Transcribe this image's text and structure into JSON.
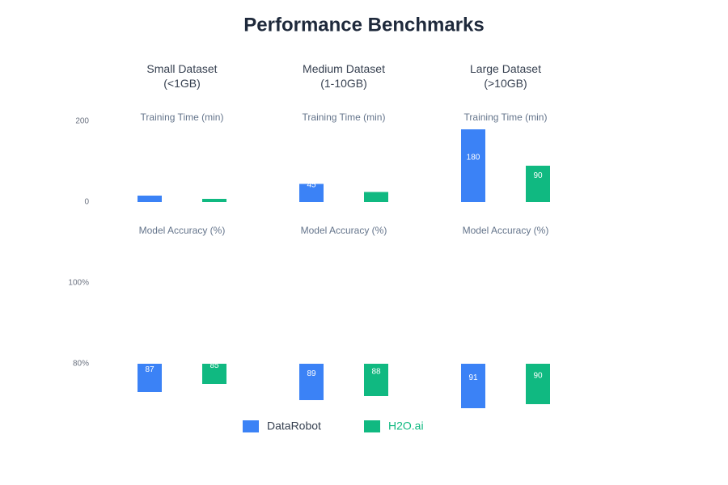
{
  "chart_data": {
    "type": "bar",
    "title": "Performance Benchmarks",
    "categories": [
      "Small Dataset\n(<1GB)",
      "Medium Dataset\n(1-10GB)",
      "Large Dataset\n(>10GB)"
    ],
    "panels": [
      {
        "label": "Training Time (min)",
        "ylim": [
          0,
          200
        ],
        "yticks": [
          0,
          200
        ]
      },
      {
        "label": "Model Accuracy (%)",
        "ylim": [
          80,
          100
        ],
        "yticks": [
          {
            "value": 100,
            "label": "100%"
          },
          {
            "value": 80,
            "label": "80%"
          }
        ]
      }
    ],
    "series": [
      {
        "name": "DataRobot",
        "color": "#3b82f6",
        "values": [
          [
            16,
            45,
            180
          ],
          [
            87,
            89,
            91
          ]
        ]
      },
      {
        "name": "H2O.ai",
        "color": "#10b981",
        "values": [
          [
            8,
            25,
            90
          ],
          [
            85,
            88,
            90
          ]
        ]
      }
    ]
  }
}
